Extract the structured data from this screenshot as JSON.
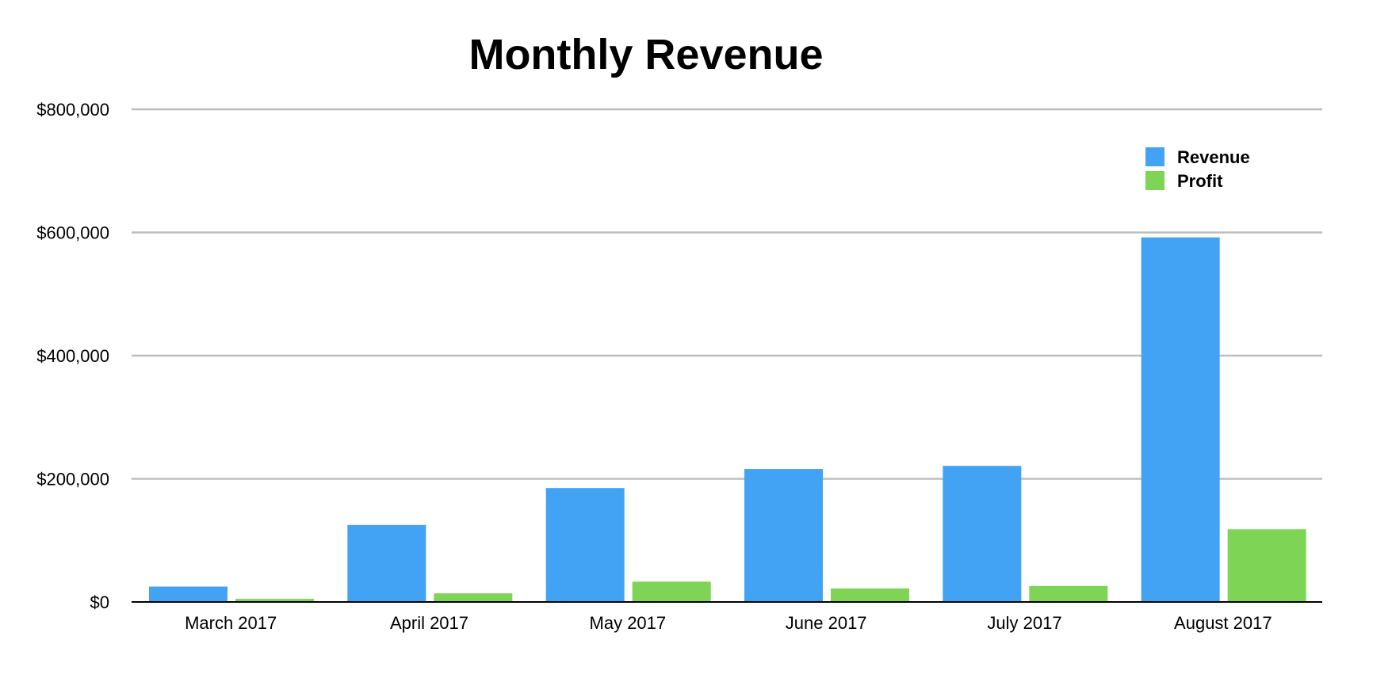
{
  "chart_data": {
    "type": "bar",
    "title": "Monthly Revenue",
    "xlabel": "",
    "ylabel": "",
    "categories": [
      "March 2017",
      "April 2017",
      "May 2017",
      "June 2017",
      "July 2017",
      "August 2017"
    ],
    "series": [
      {
        "name": "Revenue",
        "color": "#42a3f5",
        "values": [
          25000,
          125000,
          185000,
          216000,
          221000,
          592000
        ]
      },
      {
        "name": "Profit",
        "color": "#7dd455",
        "values": [
          5000,
          14000,
          33000,
          22000,
          26000,
          118000
        ]
      }
    ],
    "ylim": [
      0,
      800000
    ],
    "yticks": [
      0,
      200000,
      400000,
      600000,
      800000
    ],
    "ytick_labels": [
      "$0",
      "$200,000",
      "$400,000",
      "$600,000",
      "$800,000"
    ],
    "grid": true,
    "legend_position": "top-right"
  }
}
